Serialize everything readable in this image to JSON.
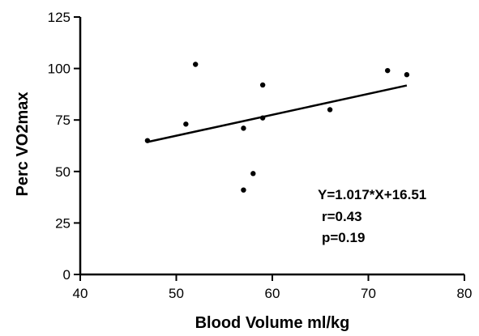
{
  "chart_data": {
    "type": "scatter",
    "xlabel": "Blood Volume ml/kg",
    "ylabel": "Perc VO2max",
    "xlim": [
      40,
      80
    ],
    "ylim": [
      0,
      125
    ],
    "xticks": [
      40,
      50,
      60,
      70,
      80
    ],
    "yticks": [
      0,
      25,
      50,
      75,
      100,
      125
    ],
    "grid": false,
    "points": [
      {
        "x": 47,
        "y": 65
      },
      {
        "x": 51,
        "y": 73
      },
      {
        "x": 52,
        "y": 102
      },
      {
        "x": 57,
        "y": 71
      },
      {
        "x": 57,
        "y": 41
      },
      {
        "x": 58,
        "y": 49
      },
      {
        "x": 59,
        "y": 92
      },
      {
        "x": 59,
        "y": 76
      },
      {
        "x": 66,
        "y": 80
      },
      {
        "x": 72,
        "y": 99
      },
      {
        "x": 74,
        "y": 97
      }
    ],
    "regression": {
      "slope": 1.017,
      "intercept": 16.51,
      "x_range": [
        47,
        74
      ]
    },
    "annotations": [
      "Y=1.017*X+16.51",
      "r=0.43",
      "p=0.19"
    ]
  }
}
